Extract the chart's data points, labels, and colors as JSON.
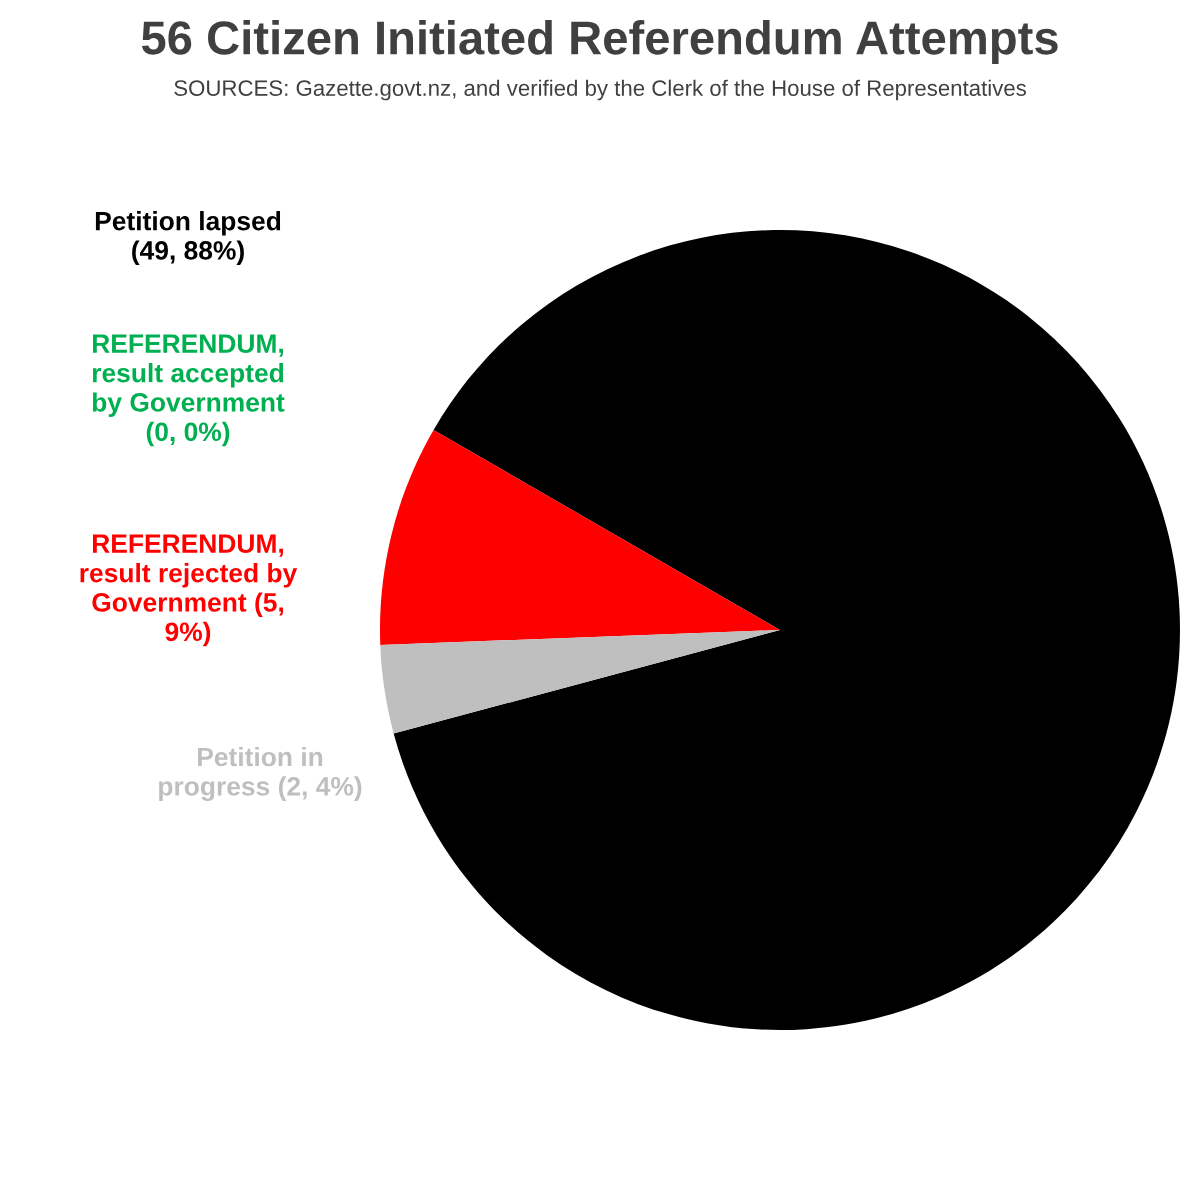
{
  "chart_data": {
    "type": "pie",
    "title": "56 Citizen Initiated Referendum Attempts",
    "subtitle": "SOURCES: Gazette.govt.nz, and verified by the Clerk of the House of Representatives",
    "categories": [
      "Petition lapsed\n(49, 88%)",
      "REFERENDUM,\nresult accepted\nby Government\n(0, 0%)",
      "REFERENDUM,\nresult rejected by\nGovernment (5,\n9%)",
      "Petition in\nprogress (2, 4%)"
    ],
    "values": [
      49,
      0,
      5,
      2
    ],
    "colors": [
      "#000000",
      "#00b050",
      "#ff0000",
      "#bfbfbf"
    ],
    "legend": false
  }
}
